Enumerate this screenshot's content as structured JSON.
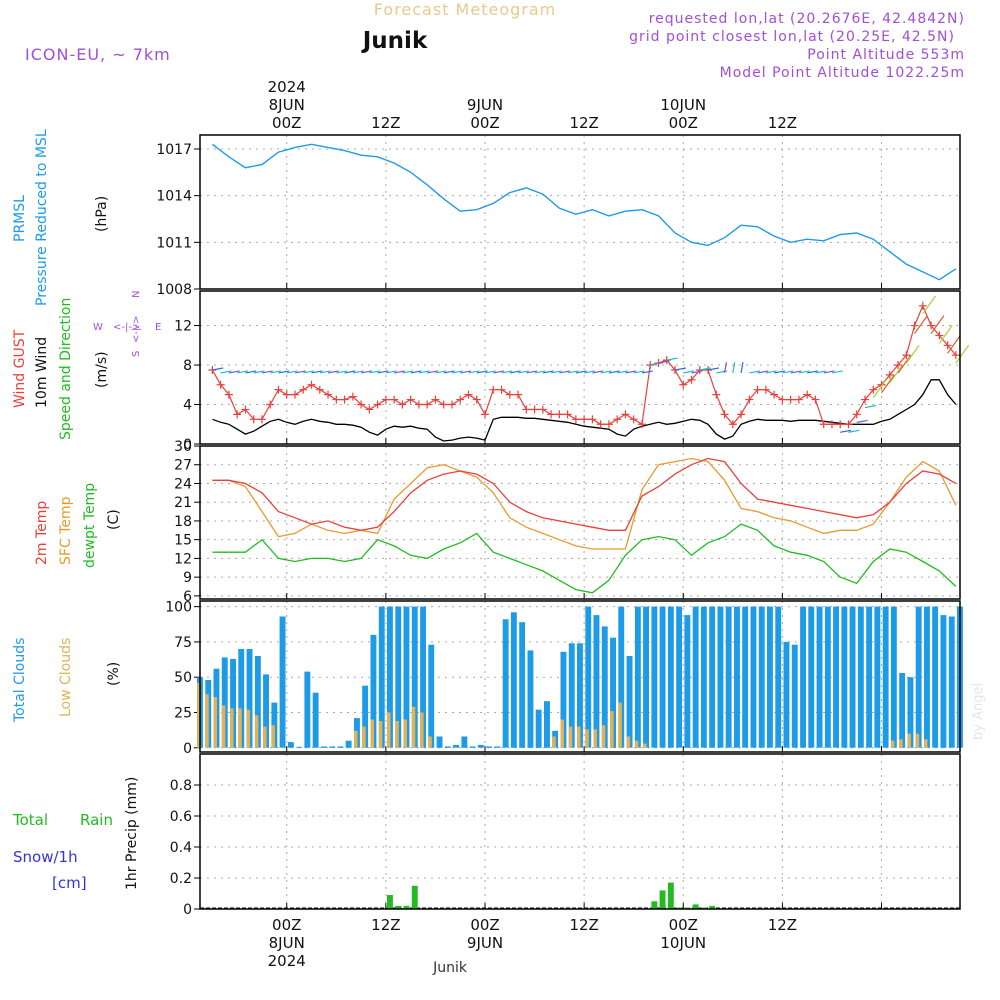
{
  "header": {
    "title_top": "Forecast Meteogram",
    "location": "Junik",
    "model": "ICON-EU, ~ 7km",
    "requested": "requested lon,lat (20.2676E, 42.4842N)",
    "gridpoint": "grid point closest lon,lat (20.25E, 42.5N)",
    "point_alt": "Point Altitude 553m",
    "model_alt": "Model Point Altitude 1022.25m",
    "footer_location": "Junik",
    "watermark": "by Angel"
  },
  "time_axis": {
    "ticks": [
      "00Z",
      "12Z",
      "00Z",
      "12Z",
      "00Z",
      "12Z"
    ],
    "dates_top": [
      {
        "year": "2024",
        "date": "8JUN"
      },
      {
        "date": "9JUN"
      },
      {
        "date": "10JUN"
      }
    ],
    "dates_bottom": [
      {
        "date": "8JUN",
        "year": "2024"
      },
      {
        "date": "9JUN"
      },
      {
        "date": "10JUN"
      }
    ]
  },
  "colors": {
    "pressure": "#1e9be6",
    "gust": "#e8413c",
    "wind": "#000000",
    "temp": "#e8413c",
    "sfc": "#e89a2c",
    "dew": "#22bb22",
    "total_clouds": "#1e9be6",
    "low_clouds": "#e0b25a",
    "rain": "#22bb22",
    "snow": "#3333dd",
    "purple": "#a24fd6"
  },
  "panel_labels": {
    "pressure": {
      "line1": "PRMSL",
      "line2": "Pressure Reduced to MSL",
      "unit": "(hPa)"
    },
    "wind": {
      "gust": "Wind GUST",
      "wind": "10m Wind",
      "dir": "Speed and Direction",
      "unit": "(m/s)",
      "compass_w": "W",
      "compass_n": "N",
      "compass_s": "S",
      "compass_e": "E"
    },
    "temp": {
      "t2m": "2m Temp",
      "sfc": "SFC Temp",
      "dew": "dewpt Temp",
      "unit": "(C)"
    },
    "clouds": {
      "total": "Total Clouds",
      "low": "Low Clouds",
      "unit": "(%)"
    },
    "precip": {
      "rain_a": "Total",
      "rain_b": "Rain",
      "snow": "Snow/1h",
      "snow_unit": "[cm]",
      "axis": "1hr Precip (mm)"
    }
  },
  "chart_data": [
    {
      "type": "line",
      "name": "pressure",
      "x_hours_from_8jun00z": [
        -9,
        -7,
        -5,
        -3,
        -1,
        1,
        3,
        5,
        7,
        9,
        11,
        13,
        15,
        17,
        19,
        21,
        23,
        25,
        27,
        29,
        31,
        33,
        35,
        37,
        39,
        41,
        43,
        45,
        47,
        49,
        51,
        53,
        55,
        57,
        59,
        61,
        63,
        65,
        67,
        69,
        71,
        73,
        75,
        77,
        79,
        81
      ],
      "y": [
        1017.3,
        1016.5,
        1015.8,
        1016.0,
        1016.8,
        1017.1,
        1017.3,
        1017.1,
        1016.9,
        1016.6,
        1016.5,
        1016.1,
        1015.5,
        1014.7,
        1013.8,
        1013.0,
        1013.1,
        1013.5,
        1014.2,
        1014.5,
        1014.1,
        1013.2,
        1012.8,
        1013.1,
        1012.7,
        1013.0,
        1013.1,
        1012.7,
        1011.6,
        1011.0,
        1010.8,
        1011.3,
        1012.1,
        1012.0,
        1011.4,
        1011.0,
        1011.2,
        1011.1,
        1011.5,
        1011.6,
        1011.2,
        1010.4,
        1009.6,
        1009.1,
        1008.6,
        1009.3
      ],
      "yticks": [
        1008,
        1011,
        1014,
        1017
      ],
      "ylim": [
        1008,
        1017.9
      ]
    },
    {
      "type": "line",
      "name": "wind",
      "x_hours_from_8jun00z": [
        -9,
        -8,
        -7,
        -6,
        -5,
        -4,
        -3,
        -2,
        -1,
        0,
        1,
        2,
        3,
        4,
        5,
        6,
        7,
        8,
        9,
        10,
        11,
        12,
        13,
        14,
        15,
        16,
        17,
        18,
        19,
        20,
        21,
        22,
        23,
        24,
        25,
        26,
        27,
        28,
        29,
        30,
        31,
        32,
        33,
        34,
        35,
        36,
        37,
        38,
        39,
        40,
        41,
        42,
        43,
        44,
        45,
        46,
        47,
        48,
        49,
        50,
        51,
        52,
        53,
        54,
        55,
        56,
        57,
        58,
        59,
        60,
        61,
        62,
        63,
        64,
        65,
        66,
        67,
        68,
        69,
        70,
        71,
        72,
        73,
        74,
        75,
        76,
        77,
        78,
        79,
        80,
        81
      ],
      "gust": [
        7.5,
        6.0,
        5.0,
        3.0,
        3.5,
        2.5,
        2.5,
        4.0,
        5.5,
        5.0,
        5.0,
        5.5,
        6.0,
        5.5,
        5.0,
        4.5,
        4.5,
        4.8,
        4.0,
        3.5,
        4.0,
        4.5,
        4.5,
        4.0,
        4.5,
        4.0,
        4.0,
        4.5,
        4.0,
        4.0,
        4.5,
        5.0,
        4.5,
        3.0,
        5.5,
        5.5,
        5.0,
        5.0,
        3.5,
        3.5,
        3.5,
        3.0,
        3.0,
        3.0,
        2.5,
        2.5,
        2.5,
        2.0,
        2.0,
        2.5,
        3.0,
        2.5,
        2.0,
        8.0,
        8.2,
        8.5,
        7.5,
        6.0,
        6.5,
        7.5,
        7.5,
        5.0,
        3.0,
        2.0,
        3.0,
        4.5,
        5.5,
        5.5,
        5.0,
        4.5,
        4.5,
        4.5,
        5.0,
        4.5,
        2.0,
        2.0,
        2.0,
        2.0,
        3.0,
        4.5,
        5.5,
        6.0,
        7.0,
        8.0,
        9.0,
        12.0,
        14.0,
        12.0,
        11.0,
        10.0,
        9.0
      ],
      "wind": [
        2.5,
        2.2,
        2.0,
        1.5,
        1.0,
        1.3,
        1.8,
        2.3,
        2.5,
        2.2,
        2.0,
        2.3,
        2.5,
        2.3,
        2.2,
        2.0,
        2.0,
        1.9,
        1.7,
        1.2,
        0.9,
        1.5,
        1.8,
        1.7,
        1.8,
        1.6,
        1.5,
        0.7,
        0.3,
        0.4,
        0.6,
        0.7,
        0.6,
        0.4,
        2.5,
        2.7,
        2.7,
        2.7,
        2.6,
        2.6,
        2.5,
        2.4,
        2.3,
        2.2,
        2.0,
        1.8,
        1.7,
        1.6,
        1.5,
        1.0,
        0.8,
        1.5,
        1.8,
        2.0,
        2.2,
        2.0,
        2.1,
        2.3,
        2.5,
        2.4,
        2.0,
        1.0,
        0.5,
        0.8,
        2.0,
        2.3,
        2.5,
        2.4,
        2.4,
        2.4,
        2.3,
        2.4,
        2.4,
        2.4,
        2.3,
        2.2,
        2.1,
        2.0,
        2.0,
        2.0,
        2.0,
        2.3,
        2.5,
        3.0,
        3.5,
        4.0,
        5.0,
        6.5,
        6.5,
        5.0,
        4.0
      ],
      "yticks": [
        0,
        4,
        8,
        12
      ],
      "ylim": [
        0,
        15.5
      ]
    },
    {
      "type": "line",
      "name": "temperature",
      "x_hours_from_8jun00z": [
        -9,
        -7,
        -5,
        -3,
        -1,
        1,
        3,
        5,
        7,
        9,
        11,
        13,
        15,
        17,
        19,
        21,
        23,
        25,
        27,
        29,
        31,
        33,
        35,
        37,
        39,
        41,
        43,
        45,
        47,
        49,
        51,
        53,
        55,
        57,
        59,
        61,
        63,
        65,
        67,
        69,
        71,
        73,
        75,
        77,
        79,
        81
      ],
      "t2m": [
        24.5,
        24.5,
        24.0,
        22.5,
        19.5,
        18.5,
        17.5,
        18.0,
        17.0,
        16.5,
        17.0,
        19.5,
        22.5,
        24.5,
        25.5,
        26.0,
        25.5,
        24.0,
        21.0,
        19.5,
        18.5,
        18.0,
        17.5,
        17.0,
        16.5,
        16.5,
        22.0,
        23.5,
        25.5,
        27.0,
        28.0,
        27.5,
        24.0,
        21.5,
        21.0,
        20.5,
        20.0,
        19.5,
        19.0,
        18.5,
        19.0,
        21.0,
        24.0,
        26.0,
        25.5,
        24.0
      ],
      "sfc": [
        24.5,
        24.5,
        23.5,
        19.5,
        15.5,
        16.0,
        17.5,
        16.5,
        16.0,
        16.5,
        16.0,
        21.5,
        24.0,
        26.5,
        27.0,
        26.0,
        25.0,
        22.5,
        18.5,
        17.0,
        16.0,
        15.0,
        14.0,
        13.5,
        13.5,
        13.5,
        23.0,
        27.0,
        27.5,
        28.0,
        27.5,
        24.5,
        20.0,
        19.5,
        18.5,
        18.0,
        17.0,
        16.0,
        16.5,
        16.5,
        17.5,
        21.0,
        25.0,
        27.5,
        26.0,
        20.5
      ],
      "dew": [
        13.0,
        13.0,
        13.0,
        15.0,
        12.0,
        11.5,
        12.0,
        12.0,
        11.5,
        12.0,
        15.0,
        14.0,
        12.5,
        12.0,
        13.5,
        14.5,
        16.0,
        13.0,
        12.0,
        11.0,
        10.0,
        8.5,
        7.0,
        6.5,
        8.5,
        12.5,
        15.0,
        15.5,
        15.0,
        12.5,
        14.5,
        15.5,
        17.5,
        16.5,
        14.0,
        13.0,
        12.5,
        11.5,
        9.0,
        8.0,
        11.5,
        13.5,
        13.0,
        11.5,
        10.0,
        7.5
      ],
      "yticks": [
        6,
        9,
        12,
        15,
        18,
        21,
        24,
        27,
        30
      ],
      "ylim": [
        5.5,
        30
      ]
    },
    {
      "type": "bar",
      "name": "clouds",
      "x_hours_from_8jun00z": [
        -10.5,
        -9.5,
        -8.5,
        -7.5,
        -6.5,
        -5.5,
        -4.5,
        -3.5,
        -2.5,
        -1.5,
        -0.5,
        0.5,
        1.5,
        2.5,
        3.5,
        4.5,
        5.5,
        6.5,
        7.5,
        8.5,
        9.5,
        10.5,
        11.5,
        12.5,
        13.5,
        14.5,
        15.5,
        16.5,
        17.5,
        18.5,
        19.5,
        20.5,
        21.5,
        22.5,
        23.5,
        24.5,
        25.5,
        26.5,
        27.5,
        28.5,
        29.5,
        30.5,
        31.5,
        32.5,
        33.5,
        34.5,
        35.5,
        36.5,
        37.5,
        38.5,
        39.5,
        40.5,
        41.5,
        42.5,
        43.5,
        44.5,
        45.5,
        46.5,
        47.5,
        48.5,
        49.5,
        50.5,
        51.5,
        52.5,
        53.5,
        54.5,
        55.5,
        56.5,
        57.5,
        58.5,
        59.5,
        60.5,
        61.5,
        62.5,
        63.5,
        64.5,
        65.5,
        66.5,
        67.5,
        68.5,
        69.5,
        70.5,
        71.5,
        72.5,
        73.5,
        74.5,
        75.5,
        76.5,
        77.5,
        78.5,
        79.5,
        80.5,
        81.5
      ],
      "total": [
        50,
        48,
        56,
        64,
        63,
        70,
        70,
        65,
        52,
        32,
        93,
        4,
        0,
        54,
        39,
        1,
        1,
        1,
        5,
        21,
        44,
        80,
        100,
        100,
        100,
        100,
        100,
        100,
        73,
        8,
        1,
        2,
        8,
        1,
        2,
        1,
        1,
        91,
        96,
        89,
        69,
        27,
        33,
        12,
        68,
        74,
        74,
        100,
        94,
        86,
        78,
        100,
        65,
        100,
        100,
        100,
        100,
        100,
        100,
        94,
        100,
        100,
        100,
        100,
        100,
        100,
        100,
        100,
        100,
        100,
        100,
        75,
        73,
        100,
        100,
        100,
        100,
        100,
        100,
        100,
        100,
        100,
        100,
        100,
        100,
        53,
        50,
        100,
        100,
        100,
        94,
        93,
        100,
        100
      ],
      "low": [
        46,
        38,
        36,
        30,
        28,
        28,
        27,
        23,
        15,
        16,
        0,
        0,
        0,
        0,
        0,
        0,
        0,
        0,
        0,
        12,
        15,
        20,
        19,
        25,
        19,
        20,
        29,
        25,
        8,
        0,
        0,
        0,
        0,
        0,
        0,
        0,
        0,
        0,
        0,
        0,
        0,
        0,
        0,
        8,
        20,
        15,
        15,
        13,
        13,
        16,
        26,
        32,
        8,
        5,
        3,
        0,
        0,
        0,
        0,
        0,
        0,
        0,
        0,
        0,
        0,
        0,
        0,
        0,
        0,
        0,
        0,
        0,
        0,
        0,
        0,
        0,
        0,
        0,
        0,
        0,
        0,
        0,
        0,
        0,
        5,
        6,
        10,
        10,
        6,
        0,
        0,
        0,
        0,
        0
      ],
      "yticks": [
        0,
        25,
        50,
        75,
        100
      ],
      "ylim": [
        -3,
        104
      ]
    },
    {
      "type": "bar",
      "name": "precip",
      "x_hours_from_8jun00z": [
        10.5,
        11.5,
        12.5,
        13.5,
        14.5,
        15.5,
        16.5,
        17.5,
        18.5,
        19.5,
        20.5,
        21.5,
        22.5,
        23.5,
        24.5,
        25.5,
        26.5,
        27.5,
        28.5,
        29.5,
        30.5,
        31.5,
        32.5,
        33.5,
        34.5,
        35.5,
        36.5,
        37.5,
        38.5,
        39.5,
        40.5,
        41.5,
        42.5,
        43.5,
        44.5,
        45.5,
        46.5,
        47.5,
        48.5,
        49.5,
        50.5,
        51.5,
        52.5,
        53.5,
        54.5,
        55.5,
        56.5,
        57.5,
        58.5,
        59.5,
        60.5,
        61.5,
        62.5,
        63.5,
        64.5,
        65.5,
        66.5,
        67.5,
        68.5,
        69.5,
        70.5
      ],
      "rain": [
        0,
        0,
        0.09,
        0.02,
        0.02,
        0.15,
        0,
        0,
        0,
        0,
        0,
        0,
        0,
        0,
        0,
        0,
        0,
        0,
        0,
        0,
        0,
        0,
        0,
        0,
        0,
        0,
        0,
        0,
        0,
        0,
        0,
        0,
        0,
        0,
        0.05,
        0.12,
        0.17,
        0.01,
        0.01,
        0.03,
        0.01,
        0.02,
        0,
        0,
        0,
        0,
        0,
        0,
        0,
        0,
        0,
        0,
        0,
        0,
        0,
        0,
        0,
        0,
        0,
        0.005,
        0
      ],
      "yticks": [
        0,
        0.2,
        0.4,
        0.6,
        0.8
      ],
      "ylim": [
        0,
        1.0
      ]
    }
  ]
}
